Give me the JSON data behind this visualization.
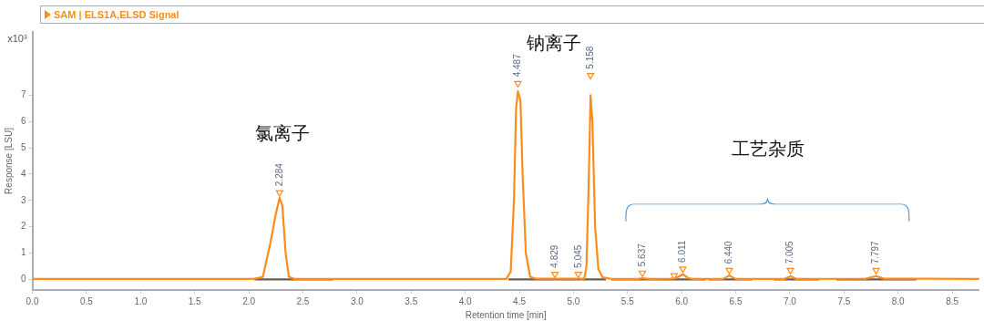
{
  "chart_data": {
    "type": "line",
    "title": "SAM | ELS1A,ELSD Signal",
    "xlabel": "Retention time [min]",
    "ylabel": "Response [LSU]",
    "xlim": [
      0,
      8.75
    ],
    "xticks": [
      {
        "value": 0,
        "label": "0.0"
      },
      {
        "value": 0.5,
        "label": "0.5"
      },
      {
        "value": 1,
        "label": "1.0"
      },
      {
        "value": 1.5,
        "label": "1.5"
      },
      {
        "value": 2,
        "label": "2.0"
      },
      {
        "value": 2.5,
        "label": "2.5"
      },
      {
        "value": 3,
        "label": "3.0"
      },
      {
        "value": 3.5,
        "label": "3.5"
      },
      {
        "value": 4,
        "label": "4.0"
      },
      {
        "value": 4.5,
        "label": "4.5"
      },
      {
        "value": 5,
        "label": "5.0"
      },
      {
        "value": 5.5,
        "label": "5.5"
      },
      {
        "value": 6,
        "label": "6.0"
      },
      {
        "value": 6.5,
        "label": "6.5"
      },
      {
        "value": 7,
        "label": "7.0"
      },
      {
        "value": 7.5,
        "label": "7.5"
      },
      {
        "value": 8,
        "label": "8.0"
      },
      {
        "value": 8.5,
        "label": "8.5"
      }
    ],
    "ylim": [
      -0.4,
      9.4
    ],
    "yticks": [
      0,
      1,
      2,
      3,
      4,
      5,
      6,
      7
    ],
    "grid": false,
    "legend": false,
    "line_style": "solid",
    "marker": "none",
    "series": [
      {
        "color": "#6b5a4e",
        "x": [
          2.05,
          2.78,
          2.79,
          4.4,
          5.3,
          5.31,
          5.35,
          6.22,
          6.23,
          6.25,
          6.65,
          6.66,
          6.85,
          7.27,
          7.28,
          7.43,
          8.17
        ],
        "values": [
          0,
          0,
          null,
          0,
          0,
          null,
          0,
          0,
          null,
          0,
          0,
          null,
          0,
          0,
          null,
          0,
          0
        ]
      },
      {
        "color": "#ff8c1a",
        "x": [
          0,
          2.05,
          2.13,
          2.2,
          2.25,
          2.284,
          2.31,
          2.34,
          2.37,
          2.42,
          4.38,
          4.42,
          4.45,
          4.47,
          4.487,
          4.51,
          4.53,
          4.56,
          4.6,
          4.65,
          5.1,
          5.12,
          5.14,
          5.158,
          5.175,
          5.2,
          5.23,
          5.27,
          5.35,
          5.6,
          5.637,
          5.7,
          5.9,
          5.95,
          6.011,
          6.06,
          6.1,
          6.38,
          6.44,
          6.5,
          6.95,
          7.005,
          7.06,
          7.7,
          7.797,
          7.87,
          8.75
        ],
        "values": [
          0.02,
          0.02,
          0.1,
          1.4,
          2.5,
          3.1,
          2.8,
          1.0,
          0.1,
          0.02,
          0.02,
          0.3,
          3.0,
          6.5,
          7.15,
          6.8,
          4.0,
          1.0,
          0.1,
          0.03,
          0.03,
          0.5,
          3.5,
          7.0,
          6.0,
          2.0,
          0.4,
          0.08,
          0.02,
          0.02,
          0.05,
          0.02,
          0.03,
          0.06,
          0.2,
          0.05,
          0.02,
          0.02,
          0.15,
          0.02,
          0.02,
          0.12,
          0.02,
          0.03,
          0.13,
          0.03,
          0.02
        ]
      },
      {
        "type": "scatter",
        "marker": "triangle",
        "color": "#ff8c1a",
        "x": [
          2.284,
          4.487,
          4.829,
          5.045,
          5.158,
          5.637,
          5.93,
          6.011,
          6.44,
          7.005,
          7.797
        ],
        "values": [
          3.3,
          7.45,
          0.2,
          0.2,
          7.75,
          0.25,
          0.15,
          0.4,
          0.35,
          0.35,
          0.35
        ]
      }
    ],
    "annotations": [
      "x10³",
      {
        "text": "2.284",
        "x": 2.284,
        "y": 3.3
      },
      {
        "text": "4.487",
        "x": 4.487,
        "y": 7.45
      },
      {
        "text": "4.829",
        "x": 4.829,
        "y": 0.2
      },
      {
        "text": "5.045",
        "x": 5.045,
        "y": 0.2
      },
      {
        "text": "5.158",
        "x": 5.158,
        "y": 7.75
      },
      {
        "text": "5.637",
        "x": 5.637,
        "y": 0.25
      },
      {
        "text": "6.011",
        "x": 6.011,
        "y": 0.4
      },
      {
        "text": "6.440",
        "x": 6.44,
        "y": 0.35
      },
      {
        "text": "7.005",
        "x": 7.005,
        "y": 0.35
      },
      {
        "text": "7.797",
        "x": 7.797,
        "y": 0.35
      },
      "氯离子",
      "钠离子",
      "工艺杂质"
    ]
  }
}
